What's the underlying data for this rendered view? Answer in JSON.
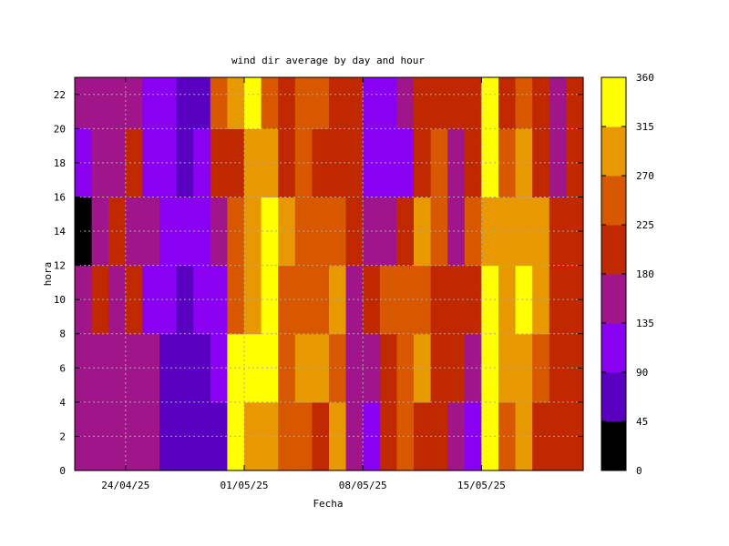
{
  "chart_data": {
    "type": "heatmap",
    "title": "wind dir average by day and hour",
    "xlabel": "Fecha",
    "ylabel": "hora",
    "x_ticks": [
      "24/04/25",
      "01/05/25",
      "08/05/25",
      "15/05/25"
    ],
    "y_ticks": [
      "0",
      "2",
      "4",
      "6",
      "8",
      "10",
      "12",
      "14",
      "16",
      "18",
      "20",
      "22"
    ],
    "ylim": [
      0,
      23
    ],
    "xlim": [
      "2025-04-21",
      "2025-05-21"
    ],
    "colorbar": {
      "min": 0,
      "max": 360,
      "ticks": [
        "0",
        "45",
        "90",
        "135",
        "180",
        "225",
        "270",
        "315",
        "360"
      ],
      "colors": [
        "#000000",
        "#5a00c0",
        "#8a00f0",
        "#a0168a",
        "#c02800",
        "#d85800",
        "#e89800",
        "#ffff00"
      ]
    },
    "grid": true,
    "x_dates": [
      "21/04",
      "22/04",
      "23/04",
      "24/04",
      "25/04",
      "26/04",
      "27/04",
      "28/04",
      "29/04",
      "30/04",
      "01/05",
      "02/05",
      "03/05",
      "04/05",
      "05/05",
      "06/05",
      "07/05",
      "08/05",
      "09/05",
      "10/05",
      "11/05",
      "12/05",
      "13/05",
      "14/05",
      "15/05",
      "16/05",
      "17/05",
      "18/05",
      "19/05",
      "20/05",
      "21/05"
    ],
    "hours": [
      0,
      4,
      8,
      12,
      16,
      20,
      23
    ],
    "values": [
      [
        160,
        150,
        170,
        40,
        110,
        170,
        160
      ],
      [
        170,
        160,
        190,
        140,
        170,
        150,
        200
      ],
      [
        150,
        160,
        170,
        190,
        140,
        170,
        180
      ],
      [
        150,
        170,
        200,
        160,
        180,
        150,
        170
      ],
      [
        160,
        150,
        130,
        170,
        110,
        130,
        160
      ],
      [
        75,
        80,
        90,
        100,
        110,
        120,
        80
      ],
      [
        70,
        75,
        80,
        90,
        80,
        75,
        80
      ],
      [
        70,
        70,
        100,
        120,
        100,
        80,
        80
      ],
      [
        80,
        90,
        110,
        150,
        200,
        230,
        210
      ],
      [
        320,
        330,
        250,
        230,
        220,
        290,
        240
      ],
      [
        300,
        320,
        310,
        280,
        300,
        330,
        230
      ],
      [
        290,
        330,
        350,
        330,
        300,
        250,
        210
      ],
      [
        250,
        230,
        260,
        280,
        220,
        200,
        190
      ],
      [
        240,
        270,
        250,
        230,
        240,
        250,
        230
      ],
      [
        200,
        280,
        240,
        260,
        220,
        230,
        210
      ],
      [
        270,
        260,
        290,
        240,
        200,
        190,
        220
      ],
      [
        140,
        160,
        170,
        190,
        180,
        200,
        210
      ],
      [
        120,
        150,
        180,
        170,
        130,
        120,
        170
      ],
      [
        200,
        220,
        230,
        160,
        120,
        100,
        180
      ],
      [
        240,
        250,
        230,
        180,
        110,
        150,
        200
      ],
      [
        200,
        270,
        230,
        290,
        200,
        210,
        240
      ],
      [
        180,
        200,
        220,
        240,
        230,
        210,
        200
      ],
      [
        160,
        190,
        190,
        170,
        160,
        180,
        190
      ],
      [
        120,
        150,
        180,
        240,
        180,
        210,
        220
      ],
      [
        330,
        340,
        320,
        300,
        340,
        350,
        340
      ],
      [
        260,
        270,
        290,
        300,
        250,
        200,
        270
      ],
      [
        270,
        300,
        320,
        300,
        270,
        260,
        290
      ],
      [
        200,
        250,
        290,
        270,
        190,
        210,
        240
      ],
      [
        180,
        210,
        200,
        190,
        150,
        170,
        200
      ],
      [
        200,
        220,
        210,
        200,
        200,
        220,
        230
      ],
      [
        220,
        210,
        200,
        200,
        240,
        230,
        200
      ]
    ]
  }
}
